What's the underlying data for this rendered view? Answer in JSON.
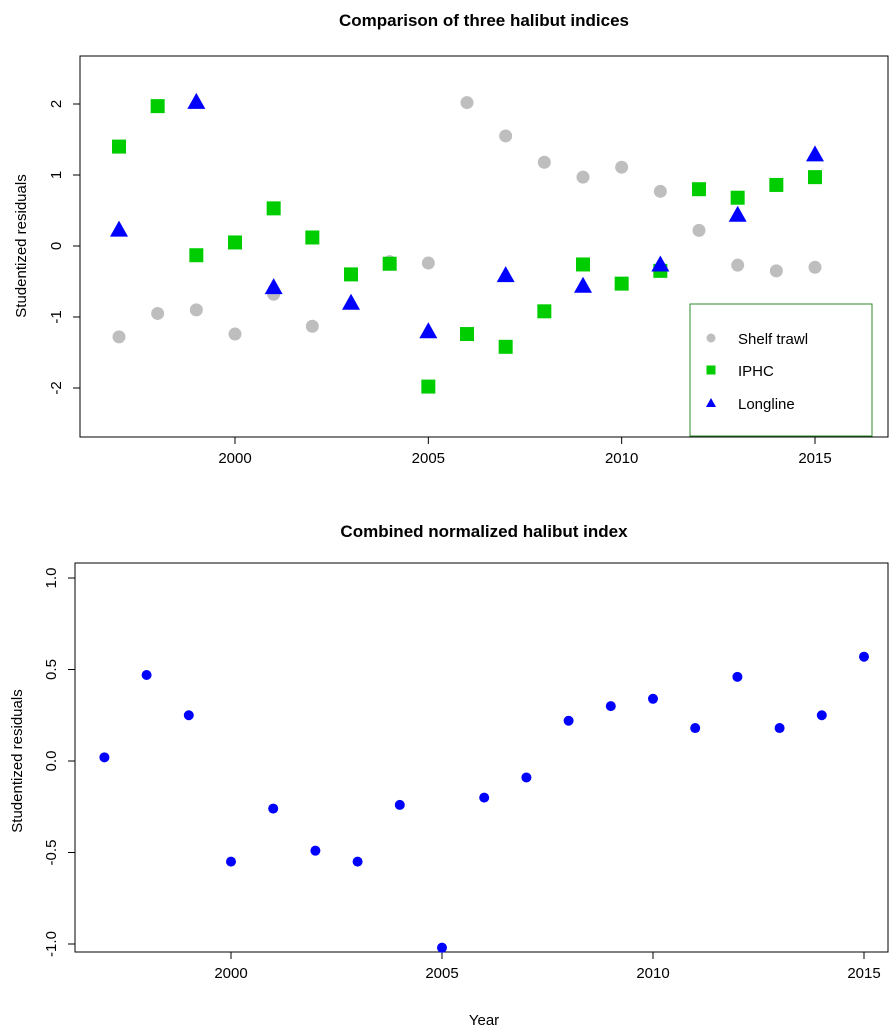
{
  "chart_data": [
    {
      "type": "scatter",
      "title": "Comparison of three halibut indices",
      "xlabel": "",
      "ylabel": "Studentized residuals",
      "xlim": [
        1996.5,
        2015.5
      ],
      "ylim": [
        -2.7,
        2.6
      ],
      "xticks": [
        "2000",
        "2005",
        "2010",
        "2015"
      ],
      "yticks": [
        "-2",
        "-1",
        "0",
        "1",
        "2"
      ],
      "legend_position": "bottom-right",
      "grid": false,
      "series": [
        {
          "name": "Shelf trawl",
          "marker": "circle",
          "color": "#bebebe",
          "x": [
            1997,
            1998,
            1999,
            2000,
            2001,
            2002,
            2004,
            2005,
            2006,
            2007,
            2008,
            2009,
            2010,
            2011,
            2012,
            2013,
            2014,
            2015
          ],
          "y": [
            -1.28,
            -0.95,
            -0.9,
            -1.24,
            -0.68,
            -1.13,
            -0.22,
            -0.24,
            2.02,
            1.55,
            1.18,
            0.97,
            1.11,
            0.77,
            0.22,
            -0.27,
            -0.35,
            -0.3
          ]
        },
        {
          "name": "IPHC",
          "marker": "square",
          "color": "#00cd00",
          "x": [
            1997,
            1998,
            1999,
            2000,
            2001,
            2002,
            2003,
            2004,
            2005,
            2006,
            2007,
            2008,
            2009,
            2010,
            2011,
            2012,
            2013,
            2014,
            2015
          ],
          "y": [
            1.4,
            1.97,
            -0.13,
            0.05,
            0.53,
            0.12,
            -0.4,
            -0.25,
            -1.98,
            -1.24,
            -1.42,
            -0.92,
            -0.26,
            -0.53,
            -0.35,
            0.8,
            0.68,
            0.86,
            0.97
          ]
        },
        {
          "name": "Longline",
          "marker": "triangle",
          "color": "#0000ff",
          "x": [
            1997,
            1999,
            2001,
            2003,
            2005,
            2007,
            2009,
            2011,
            2013,
            2015
          ],
          "y": [
            0.23,
            2.03,
            -0.58,
            -0.8,
            -1.2,
            -0.41,
            -0.56,
            -0.26,
            0.44,
            1.29
          ]
        }
      ]
    },
    {
      "type": "scatter",
      "title": "Combined normalized halibut index",
      "xlabel": "Year",
      "ylabel": "Studentized residuals",
      "xlim": [
        1996.5,
        2015.5
      ],
      "ylim": [
        -1.07,
        1.07
      ],
      "xticks": [
        "2000",
        "2005",
        "2010",
        "2015"
      ],
      "yticks": [
        "-1.0",
        "-0.5",
        "0.0",
        "0.5",
        "1.0"
      ],
      "grid": false,
      "series": [
        {
          "marker": "circle",
          "color": "#0000ff",
          "x": [
            1997,
            1998,
            1999,
            2000,
            2001,
            2002,
            2003,
            2004,
            2005,
            2006,
            2007,
            2008,
            2009,
            2010,
            2011,
            2012,
            2013,
            2014,
            2015
          ],
          "y": [
            0.02,
            0.47,
            0.25,
            -0.55,
            -0.26,
            -0.49,
            -0.55,
            -0.24,
            -1.02,
            -0.2,
            -0.09,
            0.22,
            0.3,
            0.34,
            0.18,
            0.46,
            0.18,
            0.25,
            0.57
          ]
        }
      ]
    }
  ]
}
